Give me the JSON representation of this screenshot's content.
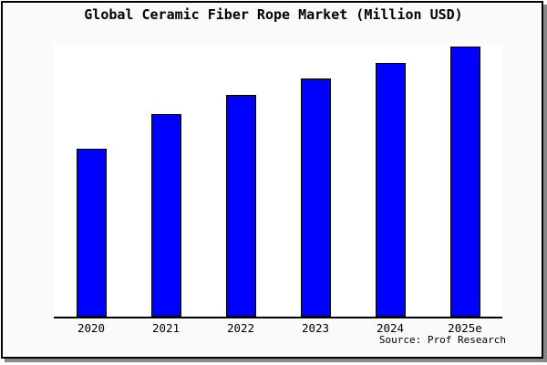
{
  "title": "Global Ceramic Fiber Rope Market (Million USD)",
  "source": "Source: Prof Research",
  "colors": {
    "bar_fill": "#0000FF",
    "bar_edge": "#000000",
    "frame_border": "#000000",
    "frame_shadow": "#888888",
    "frame_background": "#FAFAFA",
    "plot_background": "#FFFFFF",
    "axis_line": "#000000",
    "text": "#000000"
  },
  "chart_data": {
    "type": "bar",
    "title": "Global Ceramic Fiber Rope Market (Million USD)",
    "categories": [
      "2020",
      "2021",
      "2022",
      "2023",
      "2024",
      "2025e"
    ],
    "values": [
      62,
      75,
      82,
      88,
      94,
      100
    ],
    "xlabel": "",
    "ylabel": "",
    "ylim": [
      0,
      101
    ],
    "grid": false,
    "legend": false,
    "y_axis_visible": false,
    "bar_color": "#0000FF",
    "bar_edge_color": "#000000",
    "source": "Source: Prof Research"
  }
}
